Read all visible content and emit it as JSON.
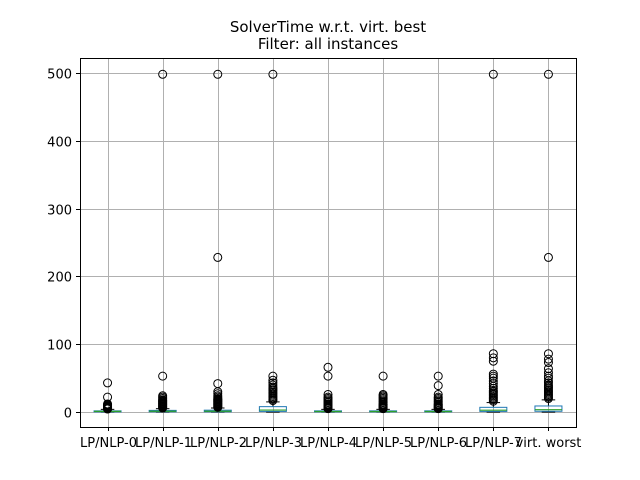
{
  "chart_data": {
    "type": "box",
    "title": "SolverTime w.r.t. virt. best",
    "subtitle": "Filter: all instances",
    "categories": [
      "LP/NLP-0",
      "LP/NLP-1",
      "LP/NLP-2",
      "LP/NLP-3",
      "LP/NLP-4",
      "LP/NLP-5",
      "LP/NLP-6",
      "LP/NLP-7",
      "virt. worst"
    ],
    "yticks": [
      0,
      100,
      200,
      300,
      400,
      500
    ],
    "ylim": [
      -22,
      522
    ],
    "grid": true,
    "boxes": [
      {
        "q1": 0.3,
        "median": 1.0,
        "q3": 1.8,
        "whisker_low": 0,
        "whisker_high": 4,
        "fliers": [
          4.5,
          5,
          5.5,
          6,
          6.5,
          7,
          7.5,
          8,
          9,
          10,
          11,
          12,
          22,
          43
        ]
      },
      {
        "q1": 0.4,
        "median": 1.2,
        "q3": 2.5,
        "whisker_low": 0,
        "whisker_high": 5,
        "fliers": [
          6,
          7,
          8,
          9,
          10,
          11,
          12,
          13,
          14,
          15,
          16,
          17,
          18,
          20,
          22,
          24,
          53,
          498
        ]
      },
      {
        "q1": 0.4,
        "median": 1.2,
        "q3": 2.8,
        "whisker_low": 0,
        "whisker_high": 6,
        "fliers": [
          7,
          8,
          9,
          10,
          11,
          12,
          13,
          14,
          15,
          16,
          17,
          18,
          19,
          20,
          22,
          24,
          27,
          30,
          42,
          228,
          498
        ]
      },
      {
        "q1": 1.0,
        "median": 3.0,
        "q3": 8.0,
        "whisker_low": 0,
        "whisker_high": 15,
        "fliers": [
          17,
          19,
          21,
          23,
          25,
          27,
          29,
          31,
          33,
          35,
          37,
          40,
          43,
          47,
          53,
          498
        ]
      },
      {
        "q1": 0.3,
        "median": 0.9,
        "q3": 1.8,
        "whisker_low": 0,
        "whisker_high": 4,
        "fliers": [
          5,
          6,
          7,
          8,
          9,
          10,
          11,
          12,
          14,
          16,
          18,
          20,
          22,
          26,
          53,
          66
        ]
      },
      {
        "q1": 0.3,
        "median": 0.9,
        "q3": 1.8,
        "whisker_low": 0,
        "whisker_high": 4,
        "fliers": [
          5,
          6,
          7,
          8,
          9,
          10,
          11,
          12,
          14,
          16,
          18,
          20,
          22,
          24,
          26,
          53
        ]
      },
      {
        "q1": 0.3,
        "median": 0.9,
        "q3": 1.8,
        "whisker_low": 0,
        "whisker_high": 4,
        "fliers": [
          5,
          6,
          7,
          8,
          9,
          10,
          11,
          12,
          14,
          16,
          18,
          20,
          22,
          26,
          39,
          53
        ]
      },
      {
        "q1": 1.0,
        "median": 2.8,
        "q3": 7.0,
        "whisker_low": 0,
        "whisker_high": 14,
        "fliers": [
          16,
          18,
          20,
          22,
          24,
          26,
          28,
          30,
          32,
          35,
          38,
          42,
          46,
          50,
          53,
          56,
          75,
          80,
          86,
          498
        ]
      },
      {
        "q1": 1.2,
        "median": 3.5,
        "q3": 9.0,
        "whisker_low": 0,
        "whisker_high": 18,
        "fliers": [
          20,
          22,
          24,
          26,
          28,
          30,
          32,
          34,
          36,
          38,
          40,
          43,
          46,
          50,
          53,
          58,
          64,
          73,
          78,
          86,
          228,
          498
        ]
      }
    ]
  }
}
